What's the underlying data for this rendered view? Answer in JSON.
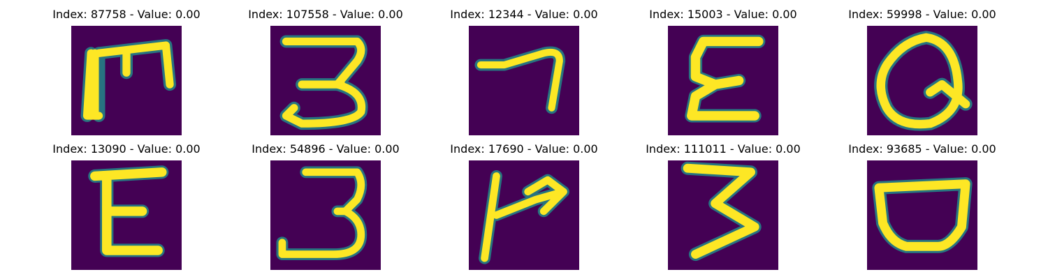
{
  "figure": {
    "colormap": {
      "background": "#440154",
      "stroke": "#fde725",
      "edge": "#21918c"
    },
    "panels": [
      {
        "index_label": "Index: 87758 - Value: 0.00",
        "glyph": "M-like"
      },
      {
        "index_label": "Index: 107558 - Value: 0.00",
        "glyph": "3-like"
      },
      {
        "index_label": "Index: 12344 - Value: 0.00",
        "glyph": "7-like"
      },
      {
        "index_label": "Index: 15003 - Value: 0.00",
        "glyph": "E-like"
      },
      {
        "index_label": "Index: 59998 - Value: 0.00",
        "glyph": "Q-like"
      },
      {
        "index_label": "Index: 13090 - Value: 0.00",
        "glyph": "E-like"
      },
      {
        "index_label": "Index: 54896 - Value: 0.00",
        "glyph": "3-like"
      },
      {
        "index_label": "Index: 17690 - Value: 0.00",
        "glyph": "P-like"
      },
      {
        "index_label": "Index: 111011 - Value: 0.00",
        "glyph": "3-like"
      },
      {
        "index_label": "Index: 93685 - Value: 0.00",
        "glyph": "D-like"
      }
    ]
  }
}
